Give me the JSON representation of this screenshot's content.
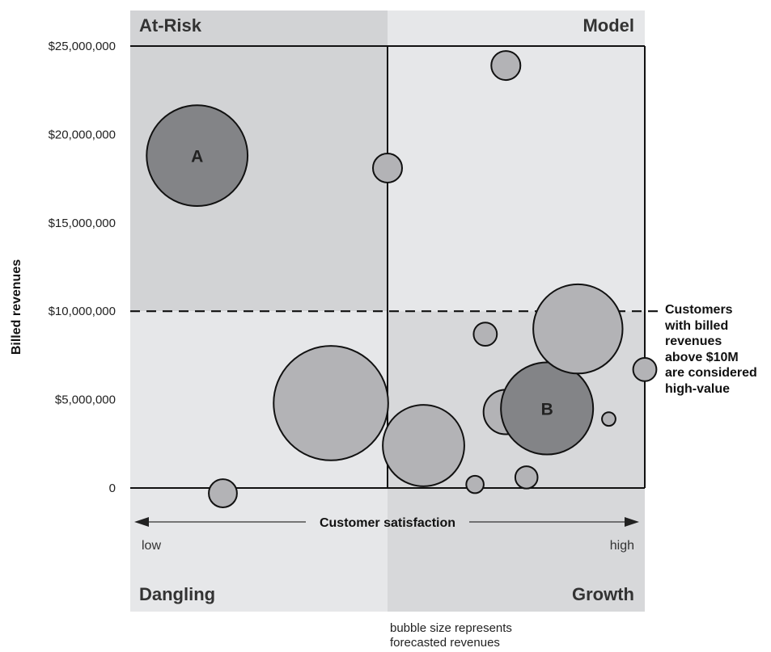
{
  "chart_data": {
    "type": "scatter",
    "subtype": "bubble",
    "ylabel": "Billed revenues",
    "xlabel": "Customer satisfaction",
    "x_low_label": "low",
    "x_high_label": "high",
    "xlim": [
      0,
      10
    ],
    "ylim": [
      0,
      25000000
    ],
    "yticks": [
      "0",
      "$5,000,000",
      "$10,000,000",
      "$15,000,000",
      "$20,000,000",
      "$25,000,000"
    ],
    "ytick_values": [
      0,
      5000000,
      10000000,
      15000000,
      20000000,
      25000000
    ],
    "threshold": {
      "value": 10000000,
      "note_lines": [
        "Customers",
        "with billed",
        "revenues",
        "above $10M",
        "are considered",
        "high-value"
      ]
    },
    "quadrants": {
      "top_left": "At-Risk",
      "top_right": "Model",
      "bottom_left": "Dangling",
      "bottom_right": "Growth"
    },
    "size_legend_lines": [
      "bubble size represents",
      "forecasted revenues"
    ],
    "grid": false,
    "colors": {
      "bubble": "#b3b3b6",
      "highlight_bubble": "#838487",
      "at_risk_bg": "#d2d3d5",
      "model_bg": "#e6e7e9",
      "dangling_bg": "#e6e7e9",
      "growth_bg": "#d7d8da",
      "axis": "#111111"
    },
    "bubbles": [
      {
        "x": 1.3,
        "y": 18800000,
        "size": 10.4,
        "label": "A",
        "highlight": true
      },
      {
        "x": 5.0,
        "y": 18100000,
        "size": 3.0
      },
      {
        "x": 7.3,
        "y": 23900000,
        "size": 3.0
      },
      {
        "x": 3.9,
        "y": 4800000,
        "size": 11.8
      },
      {
        "x": 1.8,
        "y": -300000,
        "size": 2.9
      },
      {
        "x": 5.7,
        "y": 2400000,
        "size": 8.4
      },
      {
        "x": 6.7,
        "y": 200000,
        "size": 1.8
      },
      {
        "x": 7.7,
        "y": 600000,
        "size": 2.3
      },
      {
        "x": 6.9,
        "y": 8700000,
        "size": 2.4
      },
      {
        "x": 7.3,
        "y": 4300000,
        "size": 4.6
      },
      {
        "x": 8.1,
        "y": 4500000,
        "size": 9.5,
        "label": "B",
        "highlight": true
      },
      {
        "x": 8.7,
        "y": 9000000,
        "size": 9.2
      },
      {
        "x": 9.3,
        "y": 3900000,
        "size": 1.4
      },
      {
        "x": 10.0,
        "y": 6700000,
        "size": 2.4
      }
    ]
  }
}
